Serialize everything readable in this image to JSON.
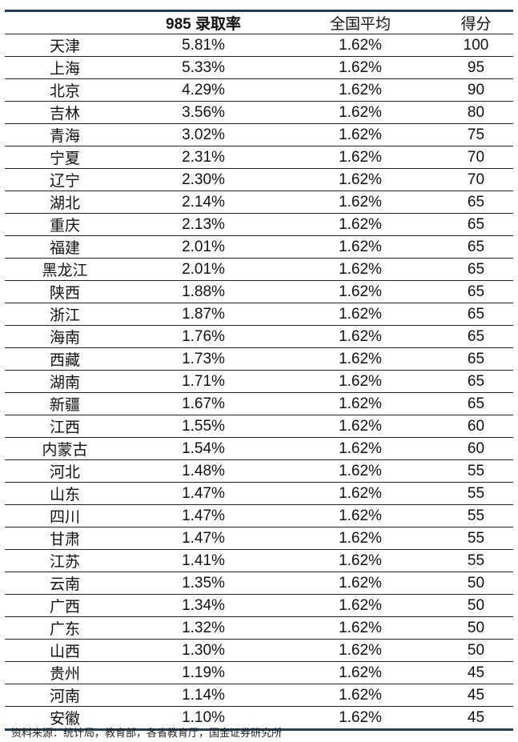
{
  "table": {
    "headers": [
      "",
      "985 录取率",
      "全国平均",
      "得分"
    ],
    "rows": [
      [
        "天津",
        "5.81%",
        "1.62%",
        "100"
      ],
      [
        "上海",
        "5.33%",
        "1.62%",
        "95"
      ],
      [
        "北京",
        "4.29%",
        "1.62%",
        "90"
      ],
      [
        "吉林",
        "3.56%",
        "1.62%",
        "80"
      ],
      [
        "青海",
        "3.02%",
        "1.62%",
        "75"
      ],
      [
        "宁夏",
        "2.31%",
        "1.62%",
        "70"
      ],
      [
        "辽宁",
        "2.30%",
        "1.62%",
        "70"
      ],
      [
        "湖北",
        "2.14%",
        "1.62%",
        "65"
      ],
      [
        "重庆",
        "2.13%",
        "1.62%",
        "65"
      ],
      [
        "福建",
        "2.01%",
        "1.62%",
        "65"
      ],
      [
        "黑龙江",
        "2.01%",
        "1.62%",
        "65"
      ],
      [
        "陕西",
        "1.88%",
        "1.62%",
        "65"
      ],
      [
        "浙江",
        "1.87%",
        "1.62%",
        "65"
      ],
      [
        "海南",
        "1.76%",
        "1.62%",
        "65"
      ],
      [
        "西藏",
        "1.73%",
        "1.62%",
        "65"
      ],
      [
        "湖南",
        "1.71%",
        "1.62%",
        "65"
      ],
      [
        "新疆",
        "1.67%",
        "1.62%",
        "65"
      ],
      [
        "江西",
        "1.55%",
        "1.62%",
        "60"
      ],
      [
        "内蒙古",
        "1.54%",
        "1.62%",
        "60"
      ],
      [
        "河北",
        "1.48%",
        "1.62%",
        "55"
      ],
      [
        "山东",
        "1.47%",
        "1.62%",
        "55"
      ],
      [
        "四川",
        "1.47%",
        "1.62%",
        "55"
      ],
      [
        "甘肃",
        "1.47%",
        "1.62%",
        "55"
      ],
      [
        "江苏",
        "1.41%",
        "1.62%",
        "55"
      ],
      [
        "云南",
        "1.35%",
        "1.62%",
        "50"
      ],
      [
        "广西",
        "1.34%",
        "1.62%",
        "50"
      ],
      [
        "广东",
        "1.32%",
        "1.62%",
        "50"
      ],
      [
        "山西",
        "1.30%",
        "1.62%",
        "50"
      ],
      [
        "贵州",
        "1.19%",
        "1.62%",
        "45"
      ],
      [
        "河南",
        "1.14%",
        "1.62%",
        "45"
      ],
      [
        "安徽",
        "1.10%",
        "1.62%",
        "45"
      ]
    ]
  },
  "source": "资料来源：统计局，教育部，各省教育厅，国金证券研究所",
  "colors": {
    "rule": "#1f3f55"
  }
}
